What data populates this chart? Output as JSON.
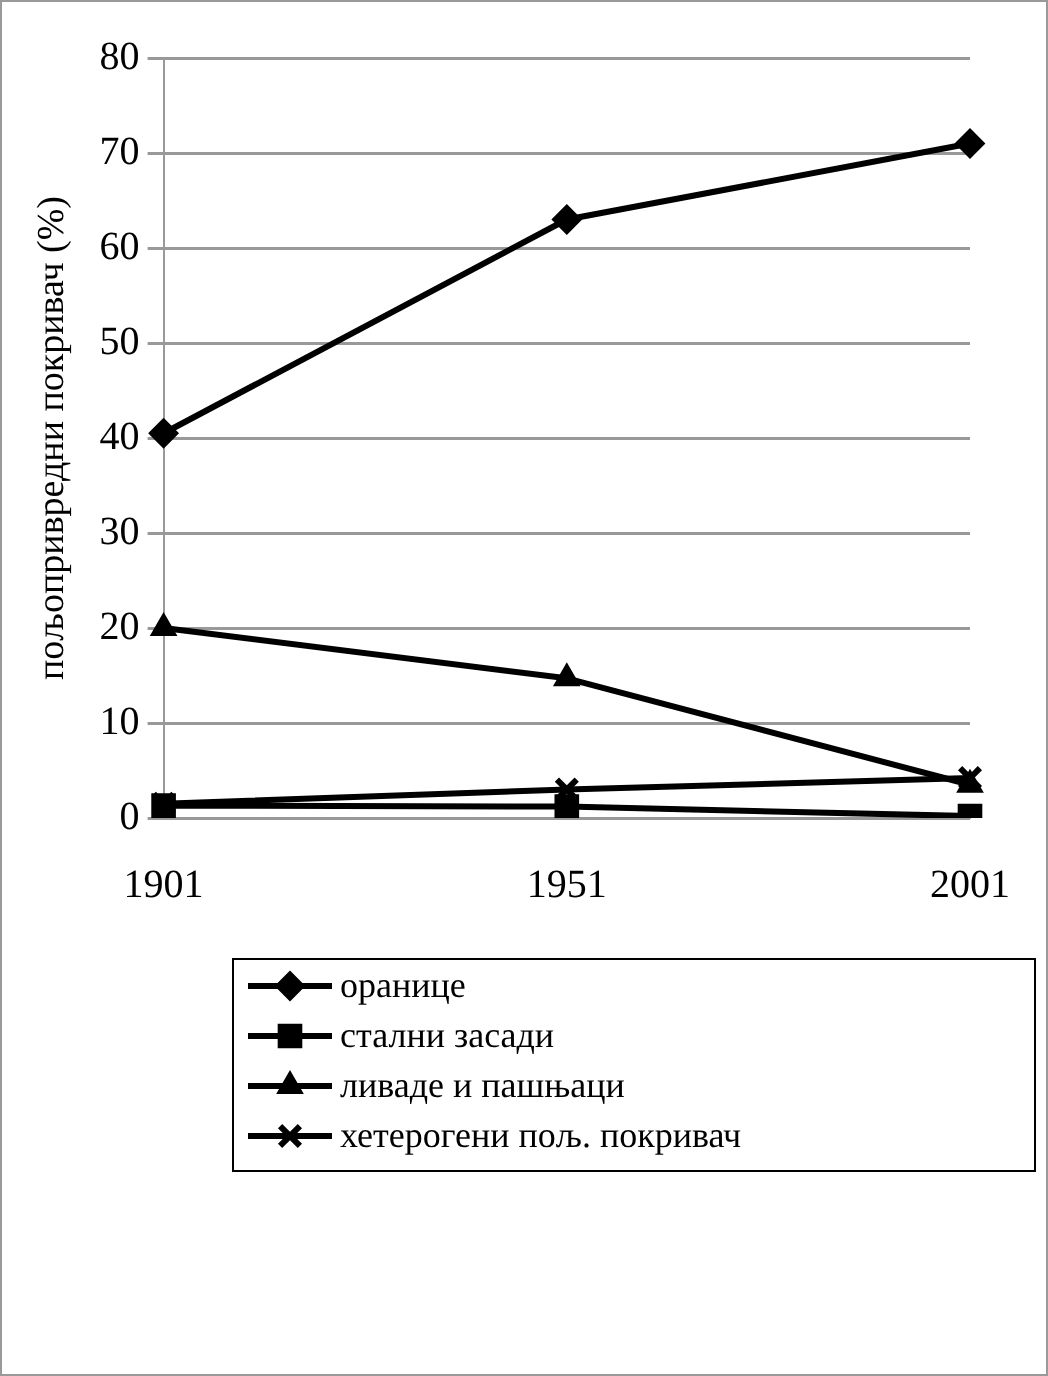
{
  "chart_data": {
    "type": "line",
    "ylabel": "пољопривредни покривач (%)",
    "categories": [
      "1901",
      "1951",
      "2001"
    ],
    "series": [
      {
        "name": "оранице",
        "color": "#000000",
        "marker": "diamond",
        "values": [
          40.5,
          63,
          71
        ]
      },
      {
        "name": "стални засади",
        "color": "#000000",
        "marker": "square",
        "values": [
          1.3,
          1.2,
          0.2
        ]
      },
      {
        "name": "ливаде и пашњаци",
        "color": "#000000",
        "marker": "triangle",
        "values": [
          20,
          14.7,
          3.5
        ]
      },
      {
        "name": "хетерогени пољ. покривач",
        "color": "#000000",
        "marker": "cross",
        "values": [
          1.5,
          3,
          4.2
        ]
      }
    ],
    "ylim": [
      0,
      80
    ],
    "yticks": [
      0,
      10,
      20,
      30,
      40,
      50,
      60,
      70,
      80
    ],
    "grid": "y",
    "legend": "bottom",
    "line_style": "solid"
  }
}
